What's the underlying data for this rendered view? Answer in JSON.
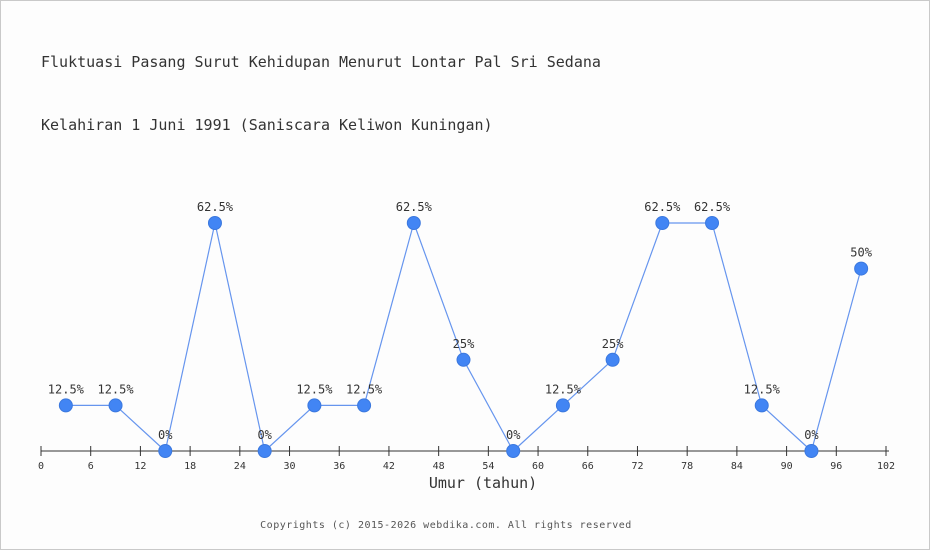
{
  "page": {
    "title_line1": "Fluktuasi Pasang Surut Kehidupan Menurut Lontar Pal Sri Sedana",
    "title_line2": "Kelahiran 1 Juni 1991 (Saniscara Keliwon Kuningan)",
    "footer": "Copyrights (c) 2015-2026 webdika.com. All rights reserved"
  },
  "chart_data": {
    "type": "line",
    "title": "Fluktuasi Pasang Surut Kehidupan Menurut Lontar Pal Sri Sedana Kelahiran 1 Juni 1991 (Saniscara Keliwon Kuningan)",
    "xlabel": "Umur (tahun)",
    "ylabel": "",
    "x": [
      3,
      9,
      15,
      21,
      27,
      33,
      39,
      45,
      51,
      57,
      63,
      69,
      75,
      81,
      87,
      93,
      99
    ],
    "values": [
      12.5,
      12.5,
      0,
      62.5,
      0,
      12.5,
      12.5,
      62.5,
      25,
      0,
      12.5,
      25,
      62.5,
      62.5,
      12.5,
      0,
      50
    ],
    "point_labels": [
      "12.5%",
      "12.5%",
      "0%",
      "62.5%",
      "0%",
      "12.5%",
      "12.5%",
      "62.5%",
      "25%",
      "0%",
      "12.5%",
      "25%",
      "62.5%",
      "62.5%",
      "12.5%",
      "0%",
      "50%"
    ],
    "x_ticks": [
      0,
      6,
      12,
      18,
      24,
      30,
      36,
      42,
      48,
      54,
      60,
      66,
      72,
      78,
      84,
      90,
      96,
      102
    ],
    "xlim": [
      0,
      102
    ],
    "ylim": [
      0,
      62.5
    ],
    "grid": false,
    "legend": false,
    "line_color": "#6695ee",
    "marker_fill": "#4285f4",
    "marker_stroke": "#3b78de",
    "axis_color": "#333333"
  }
}
